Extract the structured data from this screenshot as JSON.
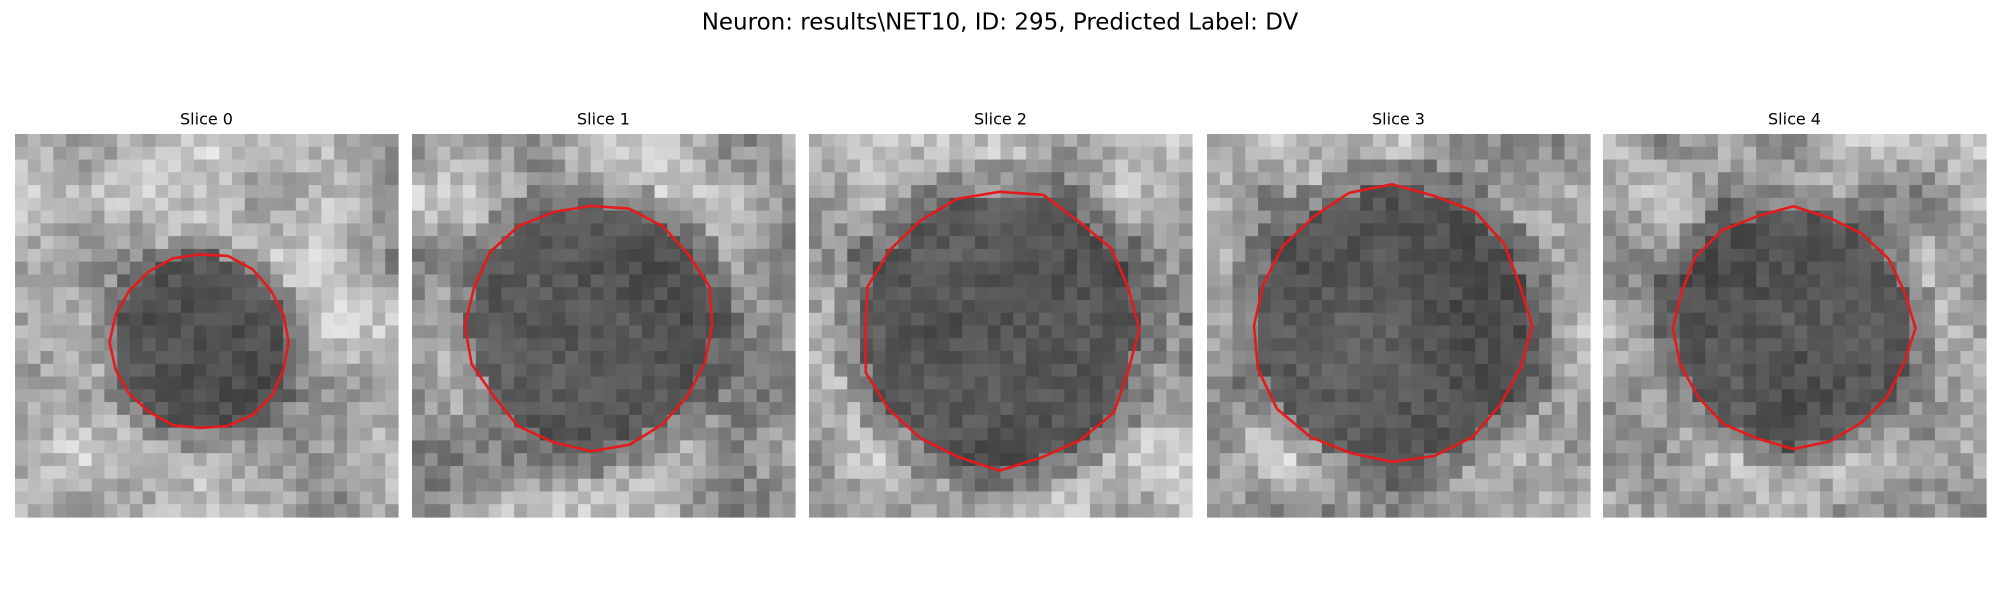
{
  "title": "Neuron: results\\NET10, ID: 295, Predicted Label: DV",
  "panels": [
    {
      "title": "Slice 0"
    },
    {
      "title": "Slice 1"
    },
    {
      "title": "Slice 2"
    },
    {
      "title": "Slice 3"
    },
    {
      "title": "Slice 4"
    }
  ]
}
